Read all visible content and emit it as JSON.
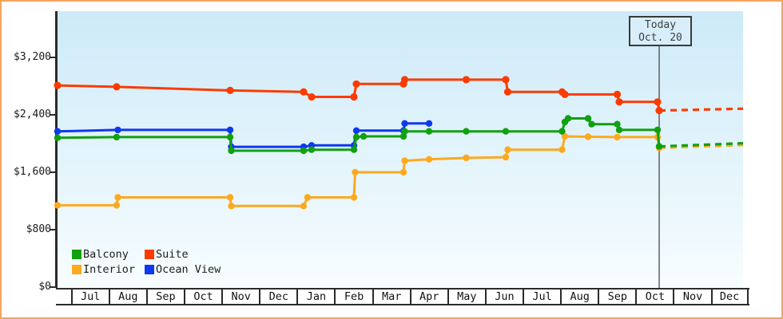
{
  "page": {
    "border_color": "#f3a55e",
    "plot_bg_top": "#cdeaf8",
    "plot_bg_bottom": "#f7fdff",
    "axis_color": "#2b2b2b"
  },
  "chart": {
    "y_ticks": [
      "$3,200",
      "$2,400",
      "$1,600",
      "$800",
      "$0"
    ],
    "months": [
      "Jul",
      "Aug",
      "Sep",
      "Oct",
      "Nov",
      "Dec",
      "Jan",
      "Feb",
      "Mar",
      "Apr",
      "May",
      "Jun",
      "Jul",
      "Aug",
      "Sep",
      "Oct",
      "Nov",
      "Dec"
    ],
    "today_box": {
      "line1": "Today",
      "line2": "Oct. 20"
    },
    "legend": [
      {
        "label": "Balcony",
        "color": "#10a010"
      },
      {
        "label": "Suite",
        "color": "#fb3b00"
      },
      {
        "label": "Interior",
        "color": "#fda91f"
      },
      {
        "label": "Ocean View",
        "color": "#0d38f0"
      }
    ]
  },
  "chart_data": {
    "type": "line",
    "title": "",
    "x_axis": {
      "unit": "months-from-first-July (fraction = day within month)",
      "labels": [
        "Jul",
        "Aug",
        "Sep",
        "Oct",
        "Nov",
        "Dec",
        "Jan",
        "Feb",
        "Mar",
        "Apr",
        "May",
        "Jun",
        "Jul",
        "Aug",
        "Sep",
        "Oct",
        "Nov",
        "Dec"
      ]
    },
    "y_axis": {
      "tick_values": [
        0,
        800,
        1600,
        2400,
        3200
      ],
      "tick_labels": [
        "$0",
        "$800",
        "$1,600",
        "$2,400",
        "$3,200"
      ],
      "ylim": [
        0,
        3600
      ],
      "unit": "USD"
    },
    "grid": false,
    "legend_position": "bottom-left-inside",
    "today_marker": {
      "label": "Today",
      "date": "Oct. 20",
      "month_pos": 15.63
    },
    "series": [
      {
        "name": "Interior",
        "color": "#fda91f",
        "style": "solid-with-dots",
        "points": [
          [
            -0.354,
            1140
          ],
          [
            1.216,
            1140
          ],
          [
            1.248,
            1250
          ],
          [
            4.231,
            1250
          ],
          [
            4.263,
            1130
          ],
          [
            6.184,
            1130
          ],
          [
            6.29,
            1250
          ],
          [
            7.521,
            1250
          ],
          [
            7.553,
            1600
          ],
          [
            8.837,
            1600
          ],
          [
            8.868,
            1760
          ],
          [
            9.516,
            1780
          ],
          [
            10.503,
            1800
          ],
          [
            11.554,
            1810
          ],
          [
            11.607,
            1915
          ],
          [
            13.05,
            1915
          ],
          [
            13.125,
            2100
          ],
          [
            13.74,
            2095
          ],
          [
            14.514,
            2090
          ],
          [
            15.587,
            2090
          ],
          [
            15.629,
            1940
          ]
        ],
        "forecast": [
          [
            15.629,
            1940
          ],
          [
            17.858,
            1980
          ]
        ]
      },
      {
        "name": "Ocean View",
        "color": "#0d38f0",
        "style": "solid-with-dots",
        "points": [
          [
            -0.354,
            2170
          ],
          [
            1.248,
            2190
          ],
          [
            4.231,
            2190
          ],
          [
            4.263,
            1955
          ],
          [
            6.184,
            1955
          ],
          [
            6.396,
            1975
          ],
          [
            7.521,
            1975
          ],
          [
            7.585,
            2180
          ],
          [
            8.837,
            2180
          ],
          [
            8.868,
            2280
          ],
          [
            9.516,
            2280
          ]
        ],
        "forecast": []
      },
      {
        "name": "Balcony",
        "color": "#10a010",
        "style": "solid-with-dots",
        "points": [
          [
            -0.354,
            2080
          ],
          [
            1.216,
            2090
          ],
          [
            4.231,
            2090
          ],
          [
            4.263,
            1900
          ],
          [
            6.184,
            1900
          ],
          [
            6.396,
            1915
          ],
          [
            7.521,
            1915
          ],
          [
            7.585,
            2090
          ],
          [
            7.776,
            2100
          ],
          [
            8.837,
            2100
          ],
          [
            8.868,
            2170
          ],
          [
            9.516,
            2170
          ],
          [
            10.503,
            2170
          ],
          [
            11.554,
            2170
          ],
          [
            13.05,
            2170
          ],
          [
            13.125,
            2300
          ],
          [
            13.209,
            2350
          ],
          [
            13.74,
            2350
          ],
          [
            13.835,
            2270
          ],
          [
            14.514,
            2270
          ],
          [
            14.568,
            2190
          ],
          [
            15.587,
            2190
          ],
          [
            15.629,
            1960
          ]
        ],
        "forecast": [
          [
            15.629,
            1960
          ],
          [
            17.858,
            2005
          ]
        ]
      },
      {
        "name": "Suite",
        "color": "#fb3b00",
        "style": "solid-with-dots",
        "points": [
          [
            -0.354,
            2810
          ],
          [
            1.216,
            2790
          ],
          [
            4.231,
            2740
          ],
          [
            6.184,
            2720
          ],
          [
            6.396,
            2650
          ],
          [
            7.521,
            2650
          ],
          [
            7.585,
            2830
          ],
          [
            8.837,
            2830
          ],
          [
            8.868,
            2890
          ],
          [
            10.503,
            2890
          ],
          [
            11.554,
            2890
          ],
          [
            11.607,
            2720
          ],
          [
            13.05,
            2720
          ],
          [
            13.125,
            2685
          ],
          [
            14.514,
            2685
          ],
          [
            14.568,
            2580
          ],
          [
            15.587,
            2580
          ],
          [
            15.629,
            2460
          ]
        ],
        "forecast": [
          [
            15.629,
            2460
          ],
          [
            17.858,
            2485
          ]
        ]
      }
    ]
  }
}
